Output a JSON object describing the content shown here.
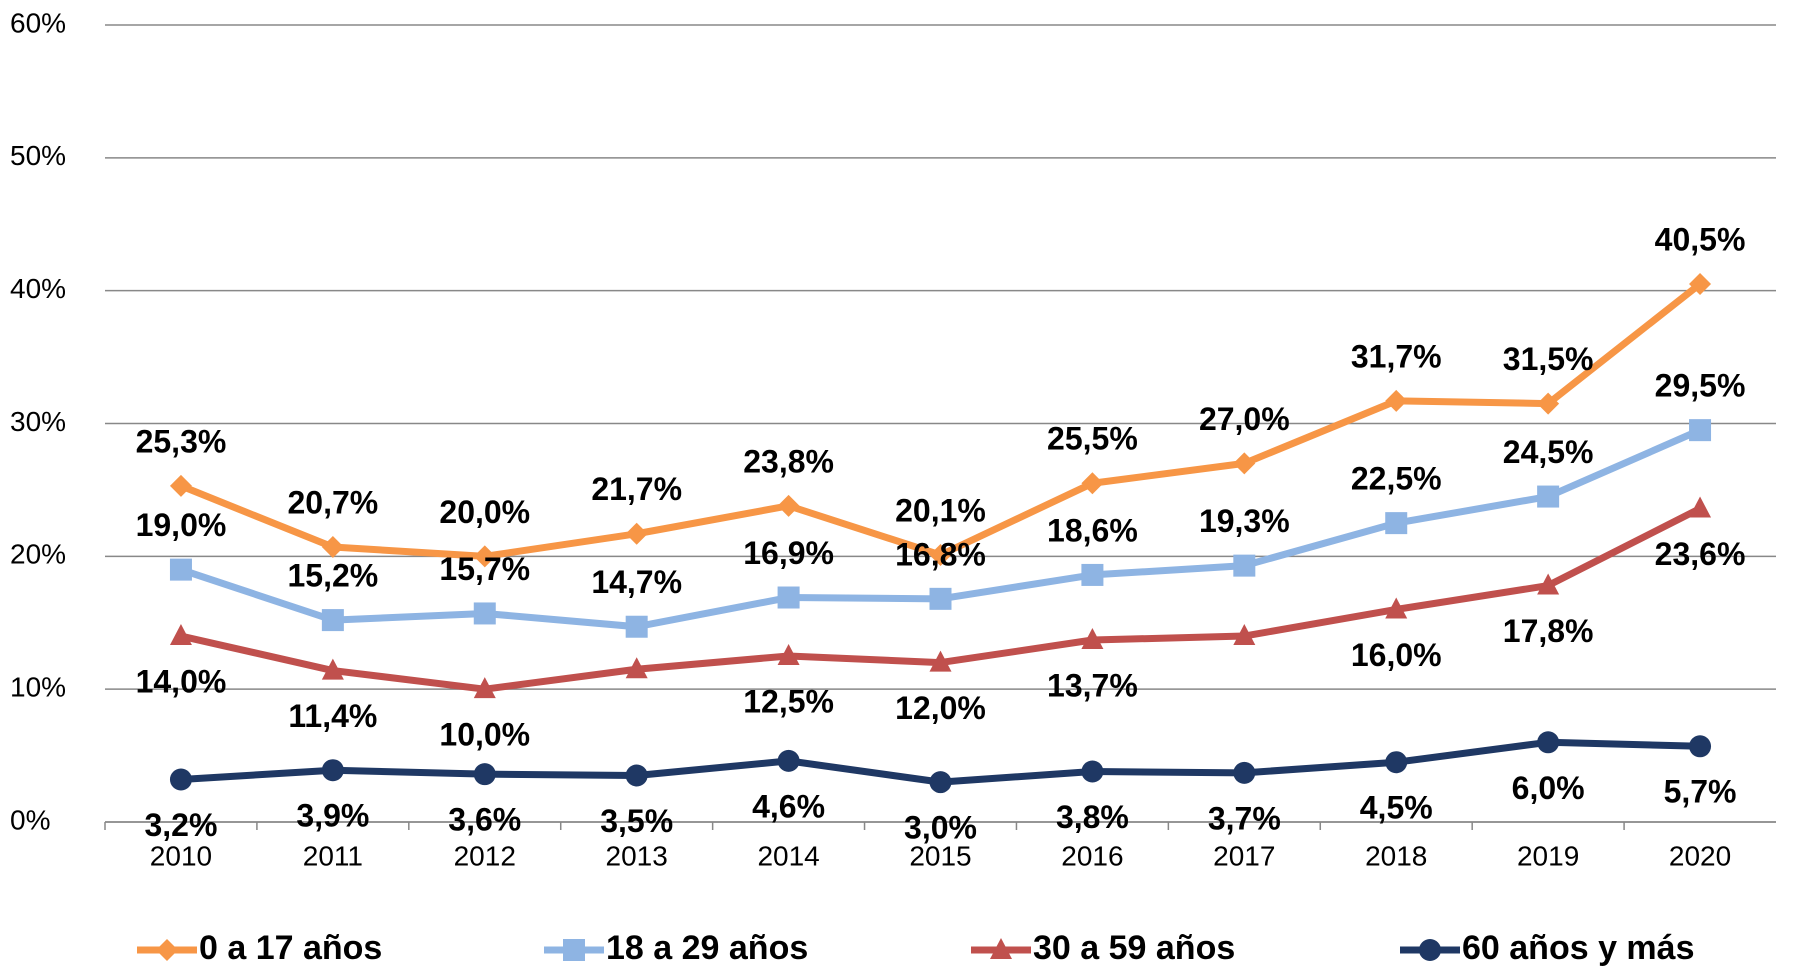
{
  "chart_data": {
    "type": "line",
    "categories": [
      "2010",
      "2011",
      "2012",
      "2013",
      "2014",
      "2015",
      "2016",
      "2017",
      "2018",
      "2019",
      "2020"
    ],
    "ylim": [
      0,
      60
    ],
    "yticks": [
      {
        "value": 0,
        "label": "0%"
      },
      {
        "value": 10,
        "label": "10%"
      },
      {
        "value": 20,
        "label": "20%"
      },
      {
        "value": 30,
        "label": "30%"
      },
      {
        "value": 40,
        "label": "40%"
      },
      {
        "value": 50,
        "label": "50%"
      },
      {
        "value": 60,
        "label": "60%"
      }
    ],
    "grid": true,
    "legend": "bottom",
    "series": [
      {
        "name": "0 a 17 años",
        "color": "#f79646",
        "marker": "diamond",
        "values": [
          25.3,
          20.7,
          20.0,
          21.7,
          23.8,
          20.1,
          25.5,
          27.0,
          31.7,
          31.5,
          40.5
        ],
        "value_labels": [
          "25,3%",
          "20,7%",
          "20,0%",
          "21,7%",
          "23,8%",
          "20,1%",
          "25,5%",
          "27,0%",
          "31,7%",
          "31,5%",
          "40,5%"
        ]
      },
      {
        "name": "18 a 29 años",
        "color": "#8eb4e3",
        "marker": "square",
        "values": [
          19.0,
          15.2,
          15.7,
          14.7,
          16.9,
          16.8,
          18.6,
          19.3,
          22.5,
          24.5,
          29.5
        ],
        "value_labels": [
          "19,0%",
          "15,2%",
          "15,7%",
          "14,7%",
          "16,9%",
          "16,8%",
          "18,6%",
          "19,3%",
          "22,5%",
          "24,5%",
          "29,5%"
        ]
      },
      {
        "name": "30 a 59 años",
        "color": "#c0504d",
        "marker": "triangle",
        "values": [
          14.0,
          11.4,
          10.0,
          11.5,
          12.5,
          12.0,
          13.7,
          14.0,
          16.0,
          17.8,
          23.6
        ],
        "value_labels": [
          "14,0%",
          "11,4%",
          "10,0%",
          null,
          "12,5%",
          "12,0%",
          "13,7%",
          null,
          "16,0%",
          "17,8%",
          "23,6%"
        ]
      },
      {
        "name": "60 años y más",
        "color": "#1f3864",
        "marker": "circle",
        "values": [
          3.2,
          3.9,
          3.6,
          3.5,
          4.6,
          3.0,
          3.8,
          3.7,
          4.5,
          6.0,
          5.7
        ],
        "value_labels": [
          "3,2%",
          "3,9%",
          "3,6%",
          "3,5%",
          "4,6%",
          "3,0%",
          "3,8%",
          "3,7%",
          "4,5%",
          "6,0%",
          "5,7%"
        ]
      }
    ]
  }
}
